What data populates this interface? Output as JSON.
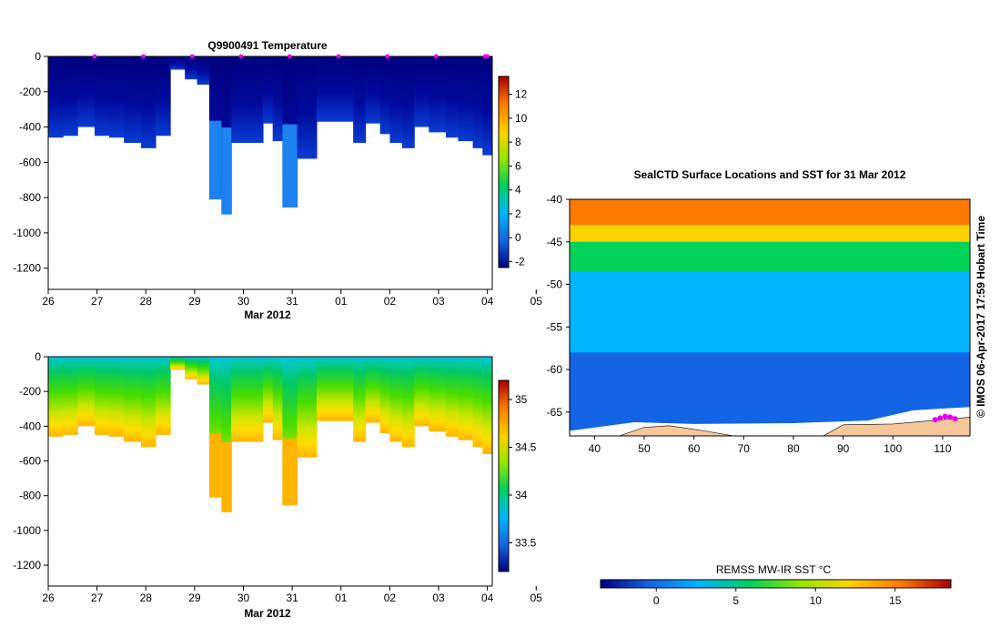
{
  "chart_data": [
    {
      "type": "heatmap",
      "title": "Q9900491  Temperature",
      "xlabel": "Mar 2012",
      "ylabel": "",
      "x_ticks": [
        "26",
        "27",
        "28",
        "29",
        "30",
        "31",
        "01",
        "02",
        "03",
        "04",
        "05"
      ],
      "y_ticks": [
        "0",
        "-200",
        "-400",
        "-600",
        "-800",
        "-1000",
        "-1200"
      ],
      "xlim": [
        26,
        35.1
      ],
      "ylim": [
        -1320,
        0
      ],
      "colorbar": {
        "ticks": [
          "12",
          "10",
          "8",
          "6",
          "4",
          "2",
          "0",
          "-2"
        ],
        "range": [
          -2.5,
          13.5
        ],
        "colors": [
          "#00007f",
          "#1464e6",
          "#00b4ff",
          "#00d25a",
          "#96e600",
          "#ffd200",
          "#ff7800",
          "#aa0000"
        ]
      },
      "profile_dates": [
        26.95,
        27.95,
        28.95,
        29.95,
        30.95,
        31.95,
        32.95,
        33.95,
        34.95,
        35.0
      ],
      "profile_bottoms": [
        {
          "x": 26.0,
          "depth": -460
        },
        {
          "x": 26.3,
          "depth": -450
        },
        {
          "x": 26.6,
          "depth": -400
        },
        {
          "x": 26.95,
          "depth": -450
        },
        {
          "x": 27.25,
          "depth": -460
        },
        {
          "x": 27.55,
          "depth": -490
        },
        {
          "x": 27.9,
          "depth": -520
        },
        {
          "x": 28.2,
          "depth": -450
        },
        {
          "x": 28.5,
          "depth": -75
        },
        {
          "x": 28.8,
          "depth": -130
        },
        {
          "x": 29.05,
          "depth": -160
        },
        {
          "x": 29.3,
          "depth": -810
        },
        {
          "x": 29.55,
          "depth": -895
        },
        {
          "x": 29.75,
          "depth": -490
        },
        {
          "x": 30.1,
          "depth": -490
        },
        {
          "x": 30.4,
          "depth": -380
        },
        {
          "x": 30.6,
          "depth": -480
        },
        {
          "x": 30.8,
          "depth": -855
        },
        {
          "x": 31.1,
          "depth": -580
        },
        {
          "x": 31.5,
          "depth": -370
        },
        {
          "x": 31.9,
          "depth": -370
        },
        {
          "x": 32.25,
          "depth": -490
        },
        {
          "x": 32.5,
          "depth": -380
        },
        {
          "x": 32.8,
          "depth": -440
        },
        {
          "x": 33.0,
          "depth": -490
        },
        {
          "x": 33.25,
          "depth": -520
        },
        {
          "x": 33.5,
          "depth": -400
        },
        {
          "x": 33.8,
          "depth": -430
        },
        {
          "x": 34.15,
          "depth": -460
        },
        {
          "x": 34.4,
          "depth": -480
        },
        {
          "x": 34.7,
          "depth": -520
        },
        {
          "x": 34.9,
          "depth": -560
        },
        {
          "x": 35.1,
          "depth": -620
        }
      ]
    },
    {
      "type": "heatmap",
      "title": "",
      "xlabel": "Mar 2012",
      "ylabel": "",
      "x_ticks": [
        "26",
        "27",
        "28",
        "29",
        "30",
        "31",
        "01",
        "02",
        "03",
        "04",
        "05"
      ],
      "y_ticks": [
        "0",
        "-200",
        "-400",
        "-600",
        "-800",
        "-1000",
        "-1200"
      ],
      "xlim": [
        26,
        35.1
      ],
      "ylim": [
        -1320,
        0
      ],
      "colorbar": {
        "ticks": [
          "35",
          "34.5",
          "34",
          "33.5"
        ],
        "range": [
          33.2,
          35.2
        ],
        "colors": [
          "#00007f",
          "#1464e6",
          "#00b4ff",
          "#00d25a",
          "#96e600",
          "#ffd200",
          "#ff7800",
          "#aa0000"
        ]
      }
    },
    {
      "type": "heatmap",
      "title": "SealCTD Surface Locations and SST for 31 Mar 2012",
      "xlabel": "",
      "ylabel": "",
      "x_ticks": [
        "40",
        "50",
        "60",
        "70",
        "80",
        "90",
        "100",
        "110"
      ],
      "y_ticks": [
        "-40",
        "-45",
        "-50",
        "-55",
        "-60",
        "-65"
      ],
      "xlim": [
        35,
        115.5
      ],
      "ylim": [
        -67.8,
        -40
      ],
      "side_label": "© IMOS 06-Apr-2017 17:59 Hobart Time",
      "colorbar": {
        "label": "REMSS MW-IR SST °C",
        "ticks": [
          "0",
          "5",
          "10",
          "15"
        ],
        "range": [
          -3.5,
          18.5
        ],
        "colors": [
          "#00007f",
          "#1464e6",
          "#00b4ff",
          "#00d25a",
          "#96e600",
          "#ffd200",
          "#ff7800",
          "#aa0000"
        ]
      },
      "sst_bands": [
        {
          "lat_top": -40,
          "lat_bottom": -43,
          "temp": 15
        },
        {
          "lat_top": -43,
          "lat_bottom": -45,
          "temp": 11
        },
        {
          "lat_top": -45,
          "lat_bottom": -48.5,
          "temp": 7
        },
        {
          "lat_top": -48.5,
          "lat_bottom": -52.5,
          "temp": 3.5
        },
        {
          "lat_top": -52.5,
          "lat_bottom": -58,
          "temp": 1.5
        },
        {
          "lat_top": -58,
          "lat_bottom": -63,
          "temp": 0
        },
        {
          "lat_top": -63,
          "lat_bottom": -67.8,
          "temp": -1.5
        }
      ],
      "seal_locations": [
        {
          "lon": 108.5,
          "lat": -65.9
        },
        {
          "lon": 109.5,
          "lat": -65.7
        },
        {
          "lon": 110.5,
          "lat": -65.5
        },
        {
          "lon": 111.5,
          "lat": -65.6
        },
        {
          "lon": 112.5,
          "lat": -65.8
        }
      ]
    }
  ]
}
